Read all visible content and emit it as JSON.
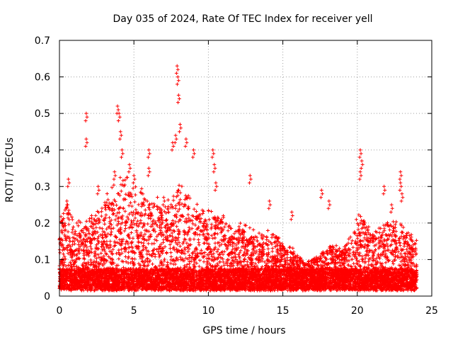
{
  "chart_data": {
    "type": "scatter",
    "title": "Day 035 of 2024, Rate Of TEC Index for receiver yell",
    "xlabel": "GPS time / hours",
    "ylabel": "ROTI / TECUs",
    "xlim": [
      0,
      25
    ],
    "ylim": [
      0,
      0.7
    ],
    "x_ticks": [
      "0",
      "5",
      "10",
      "15",
      "20",
      "25"
    ],
    "y_ticks": [
      "0",
      "0.1",
      "0.2",
      "0.3",
      "0.4",
      "0.5",
      "0.6",
      "0.7"
    ],
    "grid": true,
    "marker": "+",
    "series": [
      {
        "name": "ROTI",
        "color": "#ff0000",
        "description": "dense scatter of ROTI values from 0 to 24 h, baseline ~0.02-0.15 TECU",
        "highlights": [
          {
            "x": 0.2,
            "y": 0.2
          },
          {
            "x": 0.5,
            "y": 0.26
          },
          {
            "x": 0.6,
            "y": 0.32
          },
          {
            "x": 1.8,
            "y": 0.5
          },
          {
            "x": 1.8,
            "y": 0.43
          },
          {
            "x": 2.6,
            "y": 0.3
          },
          {
            "x": 3.7,
            "y": 0.34
          },
          {
            "x": 3.9,
            "y": 0.52
          },
          {
            "x": 4.0,
            "y": 0.5
          },
          {
            "x": 4.1,
            "y": 0.45
          },
          {
            "x": 4.2,
            "y": 0.4
          },
          {
            "x": 4.7,
            "y": 0.36
          },
          {
            "x": 5.0,
            "y": 0.33
          },
          {
            "x": 6.0,
            "y": 0.4
          },
          {
            "x": 6.0,
            "y": 0.35
          },
          {
            "x": 7.0,
            "y": 0.27
          },
          {
            "x": 7.6,
            "y": 0.42
          },
          {
            "x": 7.8,
            "y": 0.44
          },
          {
            "x": 7.9,
            "y": 0.63
          },
          {
            "x": 7.95,
            "y": 0.6
          },
          {
            "x": 8.0,
            "y": 0.55
          },
          {
            "x": 8.1,
            "y": 0.47
          },
          {
            "x": 8.5,
            "y": 0.43
          },
          {
            "x": 9.0,
            "y": 0.4
          },
          {
            "x": 10.3,
            "y": 0.4
          },
          {
            "x": 10.4,
            "y": 0.36
          },
          {
            "x": 10.5,
            "y": 0.31
          },
          {
            "x": 12.8,
            "y": 0.33
          },
          {
            "x": 14.1,
            "y": 0.26
          },
          {
            "x": 15.6,
            "y": 0.23
          },
          {
            "x": 17.6,
            "y": 0.29
          },
          {
            "x": 18.1,
            "y": 0.26
          },
          {
            "x": 20.2,
            "y": 0.4
          },
          {
            "x": 20.3,
            "y": 0.37
          },
          {
            "x": 20.2,
            "y": 0.34
          },
          {
            "x": 21.8,
            "y": 0.3
          },
          {
            "x": 22.3,
            "y": 0.25
          },
          {
            "x": 22.9,
            "y": 0.34
          },
          {
            "x": 22.9,
            "y": 0.31
          },
          {
            "x": 23.0,
            "y": 0.28
          },
          {
            "x": 23.7,
            "y": 0.15
          }
        ]
      }
    ]
  }
}
